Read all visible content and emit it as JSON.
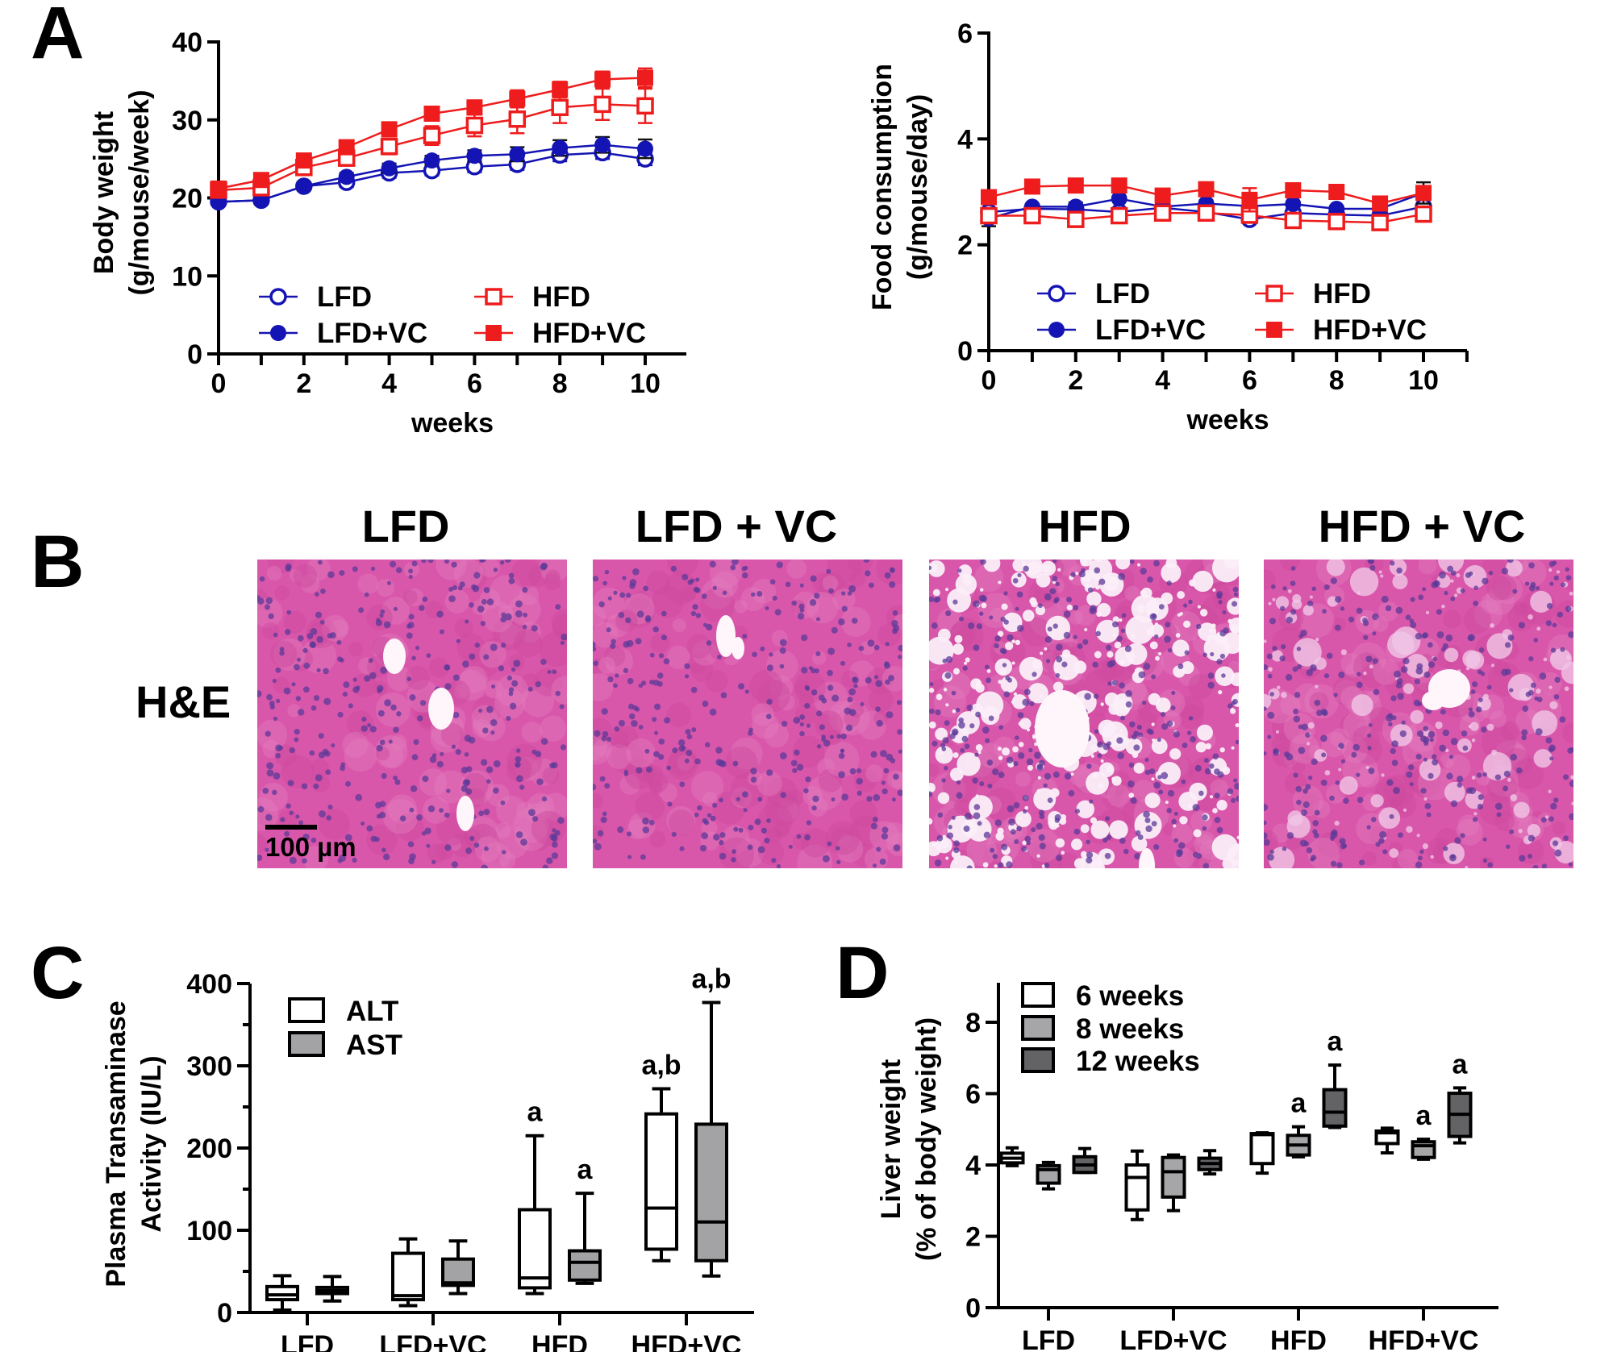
{
  "panels": {
    "a_letter": "A",
    "b_letter": "B",
    "c_letter": "C",
    "d_letter": "D"
  },
  "histology": {
    "row_label": "H&E",
    "scale_bar": "100 µm",
    "titles": [
      "LFD",
      "LFD + VC",
      "HFD",
      "HFD + VC"
    ],
    "tissue_color": "#d957ab",
    "nucleus_color": "#5b3a98"
  },
  "chart_data": [
    {
      "type": "line",
      "xlabel": "weeks",
      "ylabel": [
        "Body weight",
        "(g/mouse/week)"
      ],
      "xlim": [
        0,
        10
      ],
      "ylim": [
        0,
        40
      ],
      "xticks": [
        0,
        2,
        4,
        6,
        8,
        10
      ],
      "yticks": [
        0,
        10,
        20,
        30,
        40
      ],
      "legend": "bottom",
      "x": [
        0,
        1,
        2,
        3,
        4,
        5,
        6,
        7,
        8,
        9,
        10
      ],
      "series": [
        {
          "name": "LFD",
          "color": "#1414b4",
          "marker": "open-circle",
          "values": [
            19.5,
            19.7,
            21.5,
            22.0,
            23.2,
            23.5,
            24.0,
            24.3,
            25.5,
            25.8,
            25.0
          ],
          "errors": [
            0.4,
            0.5,
            0.5,
            0.6,
            0.6,
            0.6,
            0.7,
            0.7,
            0.8,
            0.8,
            0.8
          ]
        },
        {
          "name": "LFD+VC",
          "color": "#1414b4",
          "marker": "filled-circle",
          "values": [
            19.5,
            19.7,
            21.5,
            22.7,
            23.8,
            24.8,
            25.4,
            25.6,
            26.4,
            26.8,
            26.3
          ],
          "errors": [
            0.4,
            0.5,
            0.5,
            0.5,
            0.6,
            0.6,
            0.7,
            0.9,
            1.0,
            1.0,
            1.2
          ]
        },
        {
          "name": "HFD",
          "color": "#ee1c1c",
          "marker": "open-square",
          "values": [
            21.0,
            21.3,
            23.9,
            25.1,
            26.6,
            28.0,
            29.3,
            30.1,
            31.6,
            32.0,
            31.8
          ],
          "errors": [
            0.5,
            0.6,
            0.7,
            0.8,
            1.0,
            1.2,
            1.4,
            1.8,
            2.0,
            2.0,
            2.2
          ]
        },
        {
          "name": "HFD+VC",
          "color": "#ee1c1c",
          "marker": "filled-square",
          "values": [
            21.2,
            22.3,
            24.8,
            26.5,
            28.8,
            30.8,
            31.6,
            32.7,
            33.9,
            35.2,
            35.4
          ],
          "errors": [
            0.5,
            0.5,
            0.6,
            0.6,
            0.7,
            0.8,
            0.9,
            1.1,
            1.0,
            1.0,
            1.2
          ]
        }
      ]
    },
    {
      "type": "line",
      "xlabel": "weeks",
      "ylabel": [
        "Food consumption",
        "(g/mouse/day)"
      ],
      "xlim": [
        0,
        10
      ],
      "ylim": [
        0,
        6
      ],
      "xticks": [
        0,
        2,
        4,
        6,
        8,
        10
      ],
      "yticks": [
        0,
        2,
        4,
        6
      ],
      "legend": "bottom",
      "x": [
        0,
        1,
        2,
        3,
        4,
        5,
        6,
        7,
        8,
        9,
        10
      ],
      "series": [
        {
          "name": "LFD",
          "color": "#1414b4",
          "marker": "open-circle",
          "values": [
            2.62,
            2.68,
            2.67,
            2.62,
            2.7,
            2.62,
            2.48,
            2.6,
            2.57,
            2.55,
            2.72
          ],
          "errors": [
            0.05,
            0.05,
            0.06,
            0.05,
            0.12,
            0.05,
            0.06,
            0.05,
            0.05,
            0.05,
            0.16
          ]
        },
        {
          "name": "LFD+VC",
          "color": "#1414b4",
          "marker": "filled-circle",
          "values": [
            2.5,
            2.72,
            2.72,
            2.87,
            2.72,
            2.78,
            2.73,
            2.77,
            2.68,
            2.68,
            2.98
          ],
          "errors": [
            0.15,
            0.05,
            0.08,
            0.05,
            0.05,
            0.06,
            0.05,
            0.05,
            0.04,
            0.15,
            0.2
          ]
        },
        {
          "name": "HFD",
          "color": "#ee1c1c",
          "marker": "open-square",
          "values": [
            2.55,
            2.55,
            2.48,
            2.55,
            2.6,
            2.6,
            2.56,
            2.46,
            2.44,
            2.42,
            2.58
          ],
          "errors": [
            0.05,
            0.05,
            0.05,
            0.05,
            0.06,
            0.05,
            0.05,
            0.05,
            0.05,
            0.05,
            0.06
          ]
        },
        {
          "name": "HFD+VC",
          "color": "#ee1c1c",
          "marker": "filled-square",
          "values": [
            2.9,
            3.1,
            3.12,
            3.12,
            2.93,
            3.05,
            2.85,
            3.03,
            3.0,
            2.78,
            2.98
          ],
          "errors": [
            0.04,
            0.04,
            0.04,
            0.04,
            0.05,
            0.08,
            0.22,
            0.05,
            0.04,
            0.05,
            0.06
          ]
        }
      ]
    },
    {
      "type": "box",
      "ylabel": [
        "Plasma Transaminase",
        "Activity (IU/L)"
      ],
      "ylim": [
        0,
        400
      ],
      "yticks": [
        0,
        100,
        200,
        300,
        400
      ],
      "yminor": [
        50,
        150,
        250,
        350
      ],
      "legend": "top-left",
      "categories": [
        "LFD",
        "LFD+VC",
        "HFD",
        "HFD+VC"
      ],
      "series": [
        {
          "name": "ALT",
          "fill": "#ffffff",
          "boxes": [
            {
              "min": 3,
              "q1": 15.6,
              "median": 21.5,
              "q3": 31.5,
              "max": 44.7
            },
            {
              "min": 8.3,
              "q1": 15.6,
              "median": 20.5,
              "q3": 72,
              "max": 89.4
            },
            {
              "min": 23,
              "q1": 30,
              "median": 42,
              "q3": 125,
              "max": 215
            },
            {
              "min": 63,
              "q1": 77,
              "median": 127,
              "q3": 241.5,
              "max": 272
            }
          ],
          "annotations": [
            "",
            "",
            "a",
            "a,b"
          ]
        },
        {
          "name": "AST",
          "fill": "#a3a3a6",
          "boxes": [
            {
              "min": 14,
              "q1": 23,
              "median": 26.5,
              "q3": 30.5,
              "max": 43.7
            },
            {
              "min": 23,
              "q1": 33,
              "median": 36,
              "q3": 65,
              "max": 87
            },
            {
              "min": 35.4,
              "q1": 39.4,
              "median": 61,
              "q3": 75,
              "max": 145
            },
            {
              "min": 44.4,
              "q1": 63,
              "median": 110,
              "q3": 229,
              "max": 377
            }
          ],
          "annotations": [
            "",
            "",
            "a",
            "a,b"
          ]
        }
      ]
    },
    {
      "type": "box",
      "ylabel": [
        "Liver weight",
        "(% of body weight)"
      ],
      "ylim": [
        0,
        9
      ],
      "yticks": [
        0,
        2,
        4,
        6,
        8
      ],
      "legend": "top-left",
      "categories": [
        "LFD",
        "LFD+VC",
        "HFD",
        "HFD+VC"
      ],
      "series": [
        {
          "name": "6 weeks",
          "fill": "#ffffff",
          "boxes": [
            {
              "min": 3.98,
              "q1": 4.06,
              "median": 4.19,
              "q3": 4.33,
              "max": 4.48
            },
            {
              "min": 2.47,
              "q1": 2.74,
              "median": 3.65,
              "q3": 4.0,
              "max": 4.39
            },
            {
              "min": 3.77,
              "q1": 4.04,
              "median": 4.85,
              "q3": 4.88,
              "max": 4.9
            },
            {
              "min": 4.34,
              "q1": 4.6,
              "median": 4.9,
              "q3": 4.95,
              "max": 5.03
            }
          ],
          "annotations": [
            "",
            "",
            "",
            ""
          ]
        },
        {
          "name": "8 weeks",
          "fill": "#a6a6a8",
          "boxes": [
            {
              "min": 3.33,
              "q1": 3.49,
              "median": 3.87,
              "q3": 3.98,
              "max": 4.07
            },
            {
              "min": 2.72,
              "q1": 3.1,
              "median": 3.81,
              "q3": 4.21,
              "max": 4.28
            },
            {
              "min": 4.23,
              "q1": 4.28,
              "median": 4.56,
              "q3": 4.83,
              "max": 5.07
            },
            {
              "min": 4.16,
              "q1": 4.21,
              "median": 4.54,
              "q3": 4.65,
              "max": 4.72
            }
          ],
          "annotations": [
            "",
            "",
            "a",
            "a"
          ]
        },
        {
          "name": "12 weeks",
          "fill": "#636366",
          "boxes": [
            {
              "min": 3.79,
              "q1": 3.79,
              "median": 4.0,
              "q3": 4.23,
              "max": 4.46
            },
            {
              "min": 3.75,
              "q1": 3.87,
              "median": 4.04,
              "q3": 4.19,
              "max": 4.4
            },
            {
              "min": 5.05,
              "q1": 5.09,
              "median": 5.48,
              "q3": 6.11,
              "max": 6.8
            },
            {
              "min": 4.62,
              "q1": 4.8,
              "median": 5.42,
              "q3": 6.01,
              "max": 6.16
            }
          ],
          "annotations": [
            "",
            "",
            "a",
            "a"
          ]
        }
      ]
    }
  ]
}
